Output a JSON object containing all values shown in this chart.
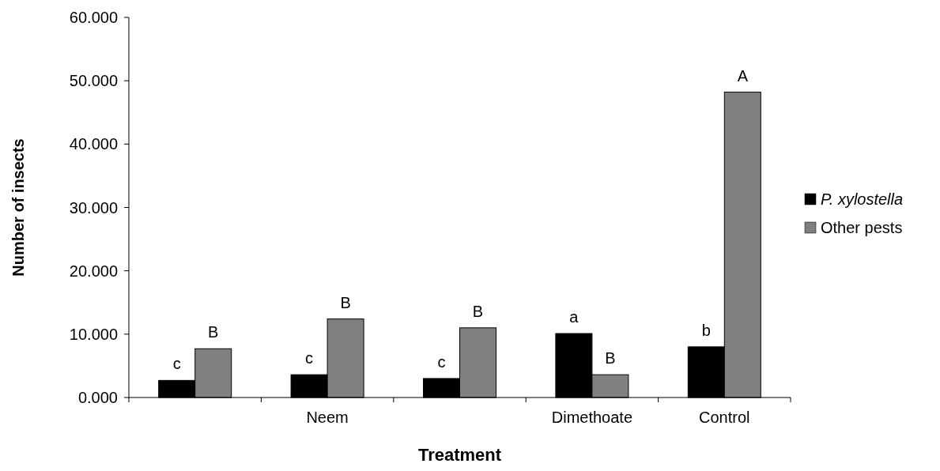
{
  "chart_data": {
    "type": "bar",
    "xlabel": "Treatment",
    "ylabel": "Number of insects",
    "categories": [
      null,
      "Neem",
      null,
      "Dimethoate",
      "Control"
    ],
    "series": [
      {
        "name": "P. xylostella",
        "color": "#000000",
        "values": [
          2.7,
          3.6,
          3.0,
          10.1,
          8.0
        ]
      },
      {
        "name": "Other pests",
        "color": "#808080",
        "values": [
          7.7,
          12.4,
          11.0,
          3.6,
          48.2
        ]
      }
    ],
    "ylim": [
      0,
      60
    ],
    "yticks": [
      {
        "value": 0,
        "label": "0.000"
      },
      {
        "value": 10,
        "label": "10.000"
      },
      {
        "value": 20,
        "label": "20.000"
      },
      {
        "value": 30,
        "label": "30.000"
      },
      {
        "value": 40,
        "label": "40.000"
      },
      {
        "value": 50,
        "label": "50.000"
      },
      {
        "value": 60,
        "label": "60.000"
      }
    ],
    "annotations": [
      "c",
      "B",
      "c",
      "B",
      "c",
      "B",
      "a",
      "B",
      "b",
      "A"
    ],
    "legend": "right",
    "grid": false
  }
}
